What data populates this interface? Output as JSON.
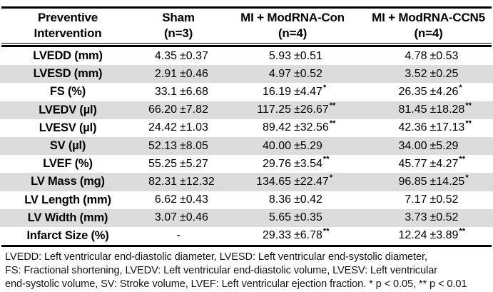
{
  "table": {
    "columns": [
      {
        "line1": "Preventive",
        "line2": "Intervention"
      },
      {
        "line1": "Sham",
        "line2": "(n=3)"
      },
      {
        "line1": "MI + ModRNA-Con",
        "line2": "(n=4)"
      },
      {
        "line1": "MI + ModRNA-CCN5",
        "line2": "(n=4)"
      }
    ],
    "rows": [
      {
        "label": "LVEDD (mm)",
        "cells": [
          {
            "value": "4.35",
            "err": "0.37",
            "sig": ""
          },
          {
            "value": "5.93",
            "err": "0.51",
            "sig": ""
          },
          {
            "value": "4.78",
            "err": "0.53",
            "sig": ""
          }
        ]
      },
      {
        "label": "LVESD (mm)",
        "cells": [
          {
            "value": "2.91",
            "err": "0.46",
            "sig": ""
          },
          {
            "value": "4.97",
            "err": "0.52",
            "sig": ""
          },
          {
            "value": "3.52",
            "err": "0.25",
            "sig": ""
          }
        ]
      },
      {
        "label": "FS (%)",
        "cells": [
          {
            "value": "33.1",
            "err": "6.68",
            "sig": ""
          },
          {
            "value": "16.19",
            "err": "4.47",
            "sig": "*"
          },
          {
            "value": "26.35",
            "err": "4.26",
            "sig": "*"
          }
        ]
      },
      {
        "label": "LVEDV (µl)",
        "cells": [
          {
            "value": "66.20",
            "err": "7.82",
            "sig": ""
          },
          {
            "value": "117.25",
            "err": "26.67",
            "sig": "**"
          },
          {
            "value": "81.45",
            "err": "18.28",
            "sig": "**"
          }
        ]
      },
      {
        "label": "LVESV (µl)",
        "cells": [
          {
            "value": "24.42",
            "err": "1.03",
            "sig": ""
          },
          {
            "value": "89.42",
            "err": "32.56",
            "sig": "**"
          },
          {
            "value": "42.36",
            "err": "17.13",
            "sig": "**"
          }
        ]
      },
      {
        "label": "SV (µl)",
        "cells": [
          {
            "value": "52.13",
            "err": "8.05",
            "sig": ""
          },
          {
            "value": "40.00",
            "err": "5.29",
            "sig": ""
          },
          {
            "value": "34.00",
            "err": "5.29",
            "sig": ""
          }
        ]
      },
      {
        "label": "LVEF (%)",
        "cells": [
          {
            "value": "55.25",
            "err": "5.27",
            "sig": ""
          },
          {
            "value": "29.76",
            "err": "3.54",
            "sig": "**"
          },
          {
            "value": "45.77",
            "err": "4.27",
            "sig": "**"
          }
        ]
      },
      {
        "label": "LV Mass (mg)",
        "cells": [
          {
            "value": "82.31",
            "err": "12.32",
            "sig": ""
          },
          {
            "value": "134.65",
            "err": "22.47",
            "sig": "*"
          },
          {
            "value": "96.85",
            "err": "14.25",
            "sig": "*"
          }
        ]
      },
      {
        "label": "LV Length (mm)",
        "cells": [
          {
            "value": "6.62",
            "err": "0.43",
            "sig": ""
          },
          {
            "value": "8.36",
            "err": "0.42",
            "sig": ""
          },
          {
            "value": "7.17",
            "err": "0.52",
            "sig": ""
          }
        ]
      },
      {
        "label": "LV Width (mm)",
        "cells": [
          {
            "value": "3.07",
            "err": "0.46",
            "sig": ""
          },
          {
            "value": "5.65",
            "err": "0.35",
            "sig": ""
          },
          {
            "value": "3.73",
            "err": "0.52",
            "sig": ""
          }
        ]
      },
      {
        "label": "Infarct Size (%)",
        "cells": [
          {
            "value": "-",
            "err": "",
            "sig": ""
          },
          {
            "value": "29.33",
            "err": "6.78",
            "sig": "**"
          },
          {
            "value": "12.24",
            "err": "3.89",
            "sig": "**"
          }
        ]
      }
    ]
  },
  "footnote": {
    "lines": [
      "LVEDD:  Left ventricular end-diastolic diameter, LVESD: Left ventricular end-systolic diameter,",
      "FS: Fractional shortening, LVEDV: Left ventricular end-diastolic volume, LVESV: Left ventricular",
      "end-systolic volume, SV: Stroke volume, LVEF: Left ventricular ejection fraction. * p < 0.05, ** p < 0.01"
    ]
  },
  "colors": {
    "stripe": "#dcdcdc",
    "rule": "#000000",
    "text": "#000000"
  }
}
